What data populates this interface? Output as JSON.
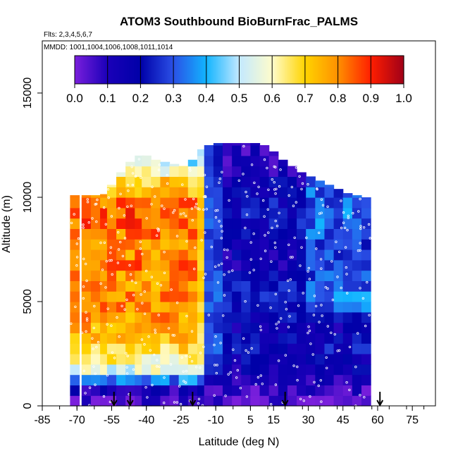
{
  "chart_data": {
    "type": "heatmap",
    "title": "ATOM3 Southbound BioBurnFrac_PALMS",
    "flights_label": "Flts: 2,3,4,5,6,7",
    "dates_label": "MMDD: 1001,1004,1006,1008,1011,1014",
    "xlabel": "Latitude (deg N)",
    "ylabel": "Altitude (m)",
    "xlim": [
      -85,
      85
    ],
    "ylim": [
      0,
      17500
    ],
    "x_ticks": [
      -85,
      -70,
      -55,
      -40,
      -25,
      -10,
      5,
      15,
      30,
      45,
      60,
      75
    ],
    "x_tick_labels": [
      "-85",
      "-70",
      "-55",
      "-40",
      "-25",
      "-10",
      "5",
      "15",
      "30",
      "45",
      "60",
      "75"
    ],
    "y_ticks": [
      0,
      5000,
      10000,
      15000
    ],
    "y_tick_labels": [
      "0",
      "5000",
      "10000",
      "15000"
    ],
    "colorbar": {
      "range": [
        0,
        1
      ],
      "ticks": [
        0.0,
        0.1,
        0.2,
        0.3,
        0.4,
        0.5,
        0.6,
        0.7,
        0.8,
        0.9,
        1.0
      ],
      "tick_labels": [
        "0.0",
        "0.1",
        "0.2",
        "0.3",
        "0.4",
        "0.5",
        "0.6",
        "0.7",
        "0.8",
        "0.9",
        "1.0"
      ],
      "colors": [
        "#7a1fdc",
        "#1a00b8",
        "#0000a8",
        "#2a50e6",
        "#12b4ff",
        "#c2e8ff",
        "#fffccc",
        "#ffd400",
        "#ff9000",
        "#ff1e00",
        "#a00018"
      ]
    },
    "profile_latitudes": [
      -71,
      -66,
      -62,
      -58,
      -55,
      -51,
      -47,
      -43,
      -40,
      -36,
      -32,
      -28,
      -24,
      -20,
      -16,
      -13,
      -9,
      -5,
      -1,
      3,
      7,
      11,
      15,
      19,
      23,
      27,
      31,
      35,
      39,
      43,
      47,
      51,
      55
    ],
    "altitude_bins": [
      0,
      500,
      1000,
      1500,
      2000,
      2500,
      3000,
      3500,
      4000,
      4500,
      5000,
      5500,
      6000,
      6500,
      7000,
      7500,
      8000,
      8500,
      9000,
      9500,
      10000,
      10500,
      11000,
      11500,
      12000,
      12500,
      13000
    ],
    "profile_tops_m": [
      10100,
      10100,
      10100,
      10150,
      10600,
      11200,
      11700,
      12000,
      12000,
      11800,
      11700,
      11600,
      11500,
      11800,
      12300,
      12500,
      12600,
      12600,
      12600,
      12600,
      12600,
      12500,
      12200,
      11800,
      11500,
      11200,
      11000,
      10800,
      10600,
      10400,
      10200,
      10100,
      10000
    ],
    "southern_fraction_by_altitude_bin": [
      0.05,
      0.12,
      0.35,
      0.55,
      0.62,
      0.68,
      0.72,
      0.76,
      0.78,
      0.8,
      0.8,
      0.78,
      0.8,
      0.82,
      0.8,
      0.78,
      0.82,
      0.84,
      0.85,
      0.82,
      0.75,
      0.7,
      0.6,
      0.5,
      0.45,
      0.4
    ],
    "northern_fraction_by_altitude_bin": [
      0.04,
      0.08,
      0.12,
      0.15,
      0.18,
      0.2,
      0.18,
      0.16,
      0.18,
      0.2,
      0.22,
      0.2,
      0.18,
      0.15,
      0.14,
      0.16,
      0.18,
      0.2,
      0.22,
      0.2,
      0.18,
      0.15,
      0.12,
      0.1,
      0.1,
      0.1
    ],
    "boundary_latitude": -14,
    "marker_latitudes": [
      -54,
      -47,
      -20,
      20,
      61
    ]
  }
}
